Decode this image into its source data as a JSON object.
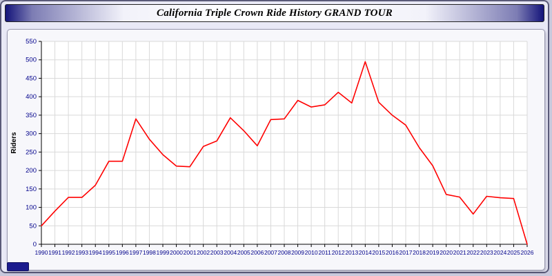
{
  "title": "California Triple Crown Ride History GRAND TOUR",
  "colors": {
    "line": "#ff0000",
    "tick_label": "#00008b",
    "grid": "#d9d9d9",
    "axis": "#000000",
    "plot_background": "#ffffff",
    "titlebar_edge": "#14147a"
  },
  "chart_data": {
    "type": "line",
    "title": "California Triple Crown Ride History GRAND TOUR",
    "xlabel": "",
    "ylabel": "Riders",
    "ylim": [
      0,
      550
    ],
    "ytick_step": 50,
    "grid": true,
    "legend_position": "none",
    "x": [
      1990,
      1991,
      1992,
      1993,
      1994,
      1995,
      1996,
      1997,
      1998,
      1999,
      2000,
      2001,
      2002,
      2003,
      2004,
      2005,
      2006,
      2007,
      2008,
      2009,
      2010,
      2011,
      2012,
      2013,
      2014,
      2015,
      2016,
      2017,
      2018,
      2019,
      2020,
      2021,
      2022,
      2023,
      2024,
      2025,
      2026
    ],
    "series": [
      {
        "name": "Riders",
        "color": "#ff0000",
        "values": [
          50,
          90,
          127,
          127,
          160,
          225,
          225,
          340,
          285,
          243,
          212,
          210,
          265,
          280,
          343,
          308,
          267,
          338,
          340,
          390,
          372,
          378,
          412,
          383,
          495,
          385,
          350,
          323,
          262,
          213,
          135,
          128,
          82,
          130,
          126,
          124,
          0
        ]
      }
    ]
  }
}
